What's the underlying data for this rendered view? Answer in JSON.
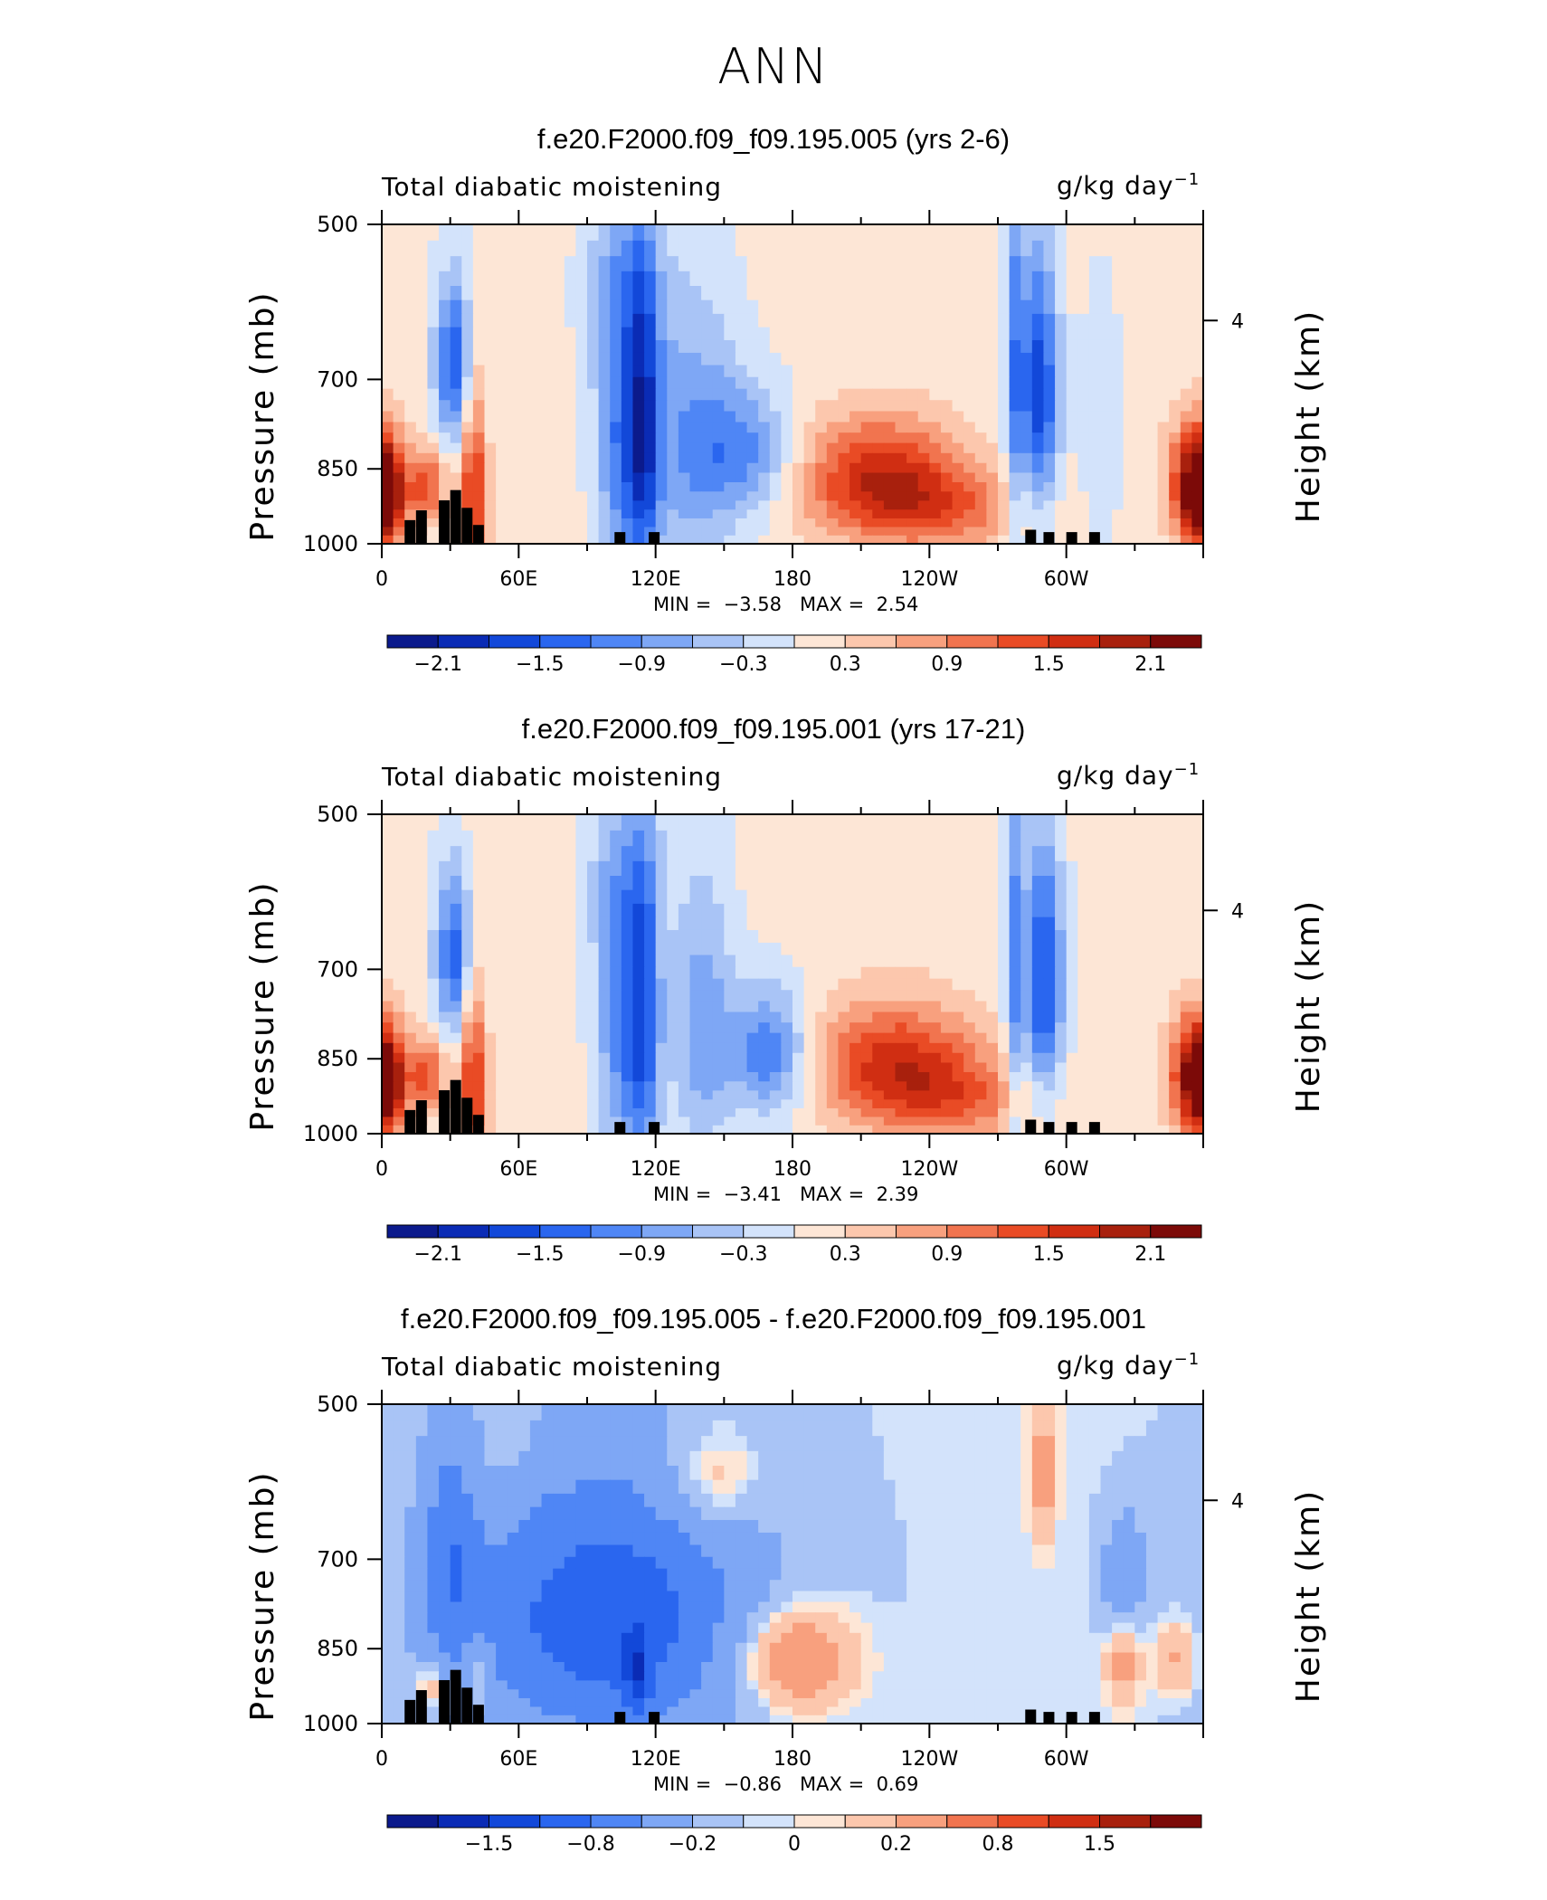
{
  "figure": {
    "main_title": "ANN",
    "varname": "Total diabatic moistening",
    "units": "g/kg day",
    "units_exp": "−1",
    "min_label": "MIN =",
    "max_label": "MAX ="
  },
  "colors": {
    "palette": [
      "#0b1a8c",
      "#0a2bb5",
      "#1248d9",
      "#2a66ef",
      "#4f86f5",
      "#7ea7f5",
      "#a9c4f6",
      "#d3e3fb",
      "#fde6d6",
      "#fcc7ad",
      "#f8a07e",
      "#f1744f",
      "#e94b25",
      "#d02e12",
      "#a8200d",
      "#7c0a08"
    ],
    "topography": "#000000"
  },
  "chart_data": [
    {
      "type": "heatmap",
      "title": "f.e20.F2000.f09_f09.195.005 (yrs 2-6)",
      "xlabel": "",
      "ylabel": "Pressure (mb)",
      "ylabel_right": "Height (km)",
      "x_ticks": [
        "0",
        "60E",
        "120E",
        "180",
        "120W",
        "60W"
      ],
      "y_ticks": [
        "500",
        "700",
        "850",
        "1000"
      ],
      "right_ticks": [
        "4"
      ],
      "xlim": [
        0,
        360
      ],
      "ylim": [
        1000,
        500
      ],
      "min_value": "−3.58",
      "max_value": "2.54",
      "colorbar_labels": [
        "−2.1",
        "−1.5",
        "−0.9",
        "−0.3",
        "0.3",
        "0.9",
        "1.5",
        "2.1"
      ],
      "colorbar_levels": [
        -2.4,
        -2.1,
        -1.8,
        -1.5,
        -1.2,
        -0.9,
        -0.6,
        -0.3,
        0,
        0.3,
        0.6,
        0.9,
        1.2,
        1.5,
        1.8,
        2.1,
        2.4
      ],
      "background": 0.1,
      "features": [
        {
          "lon": 32,
          "p": 680,
          "value": -1.6,
          "lon_width": 6,
          "p_width": 90
        },
        {
          "lon": 40,
          "p": 900,
          "value": 1.6,
          "lon_width": 4,
          "p_width": 160
        },
        {
          "lon": 2,
          "p": 900,
          "value": 1.8,
          "lon_width": 6,
          "p_width": 70
        },
        {
          "lon": 20,
          "p": 880,
          "value": 1.2,
          "lon_width": 6,
          "p_width": 50
        },
        {
          "lon": 105,
          "p": 800,
          "value": -1.2,
          "lon_width": 8,
          "p_width": 180
        },
        {
          "lon": 115,
          "p": 780,
          "value": -1.4,
          "lon_width": 5,
          "p_width": 200
        },
        {
          "lon": 135,
          "p": 800,
          "value": -0.9,
          "lon_width": 15,
          "p_width": 180
        },
        {
          "lon": 160,
          "p": 820,
          "value": -1.0,
          "lon_width": 15,
          "p_width": 80
        },
        {
          "lon": 105,
          "p": 570,
          "value": -0.6,
          "lon_width": 12,
          "p_width": 80
        },
        {
          "lon": 218,
          "p": 870,
          "value": 1.6,
          "lon_width": 25,
          "p_width": 80
        },
        {
          "lon": 250,
          "p": 930,
          "value": 0.8,
          "lon_width": 25,
          "p_width": 60
        },
        {
          "lon": 288,
          "p": 720,
          "value": -1.8,
          "lon_width": 6,
          "p_width": 150
        },
        {
          "lon": 277,
          "p": 700,
          "value": -1.0,
          "lon_width": 3,
          "p_width": 250
        },
        {
          "lon": 315,
          "p": 780,
          "value": -0.4,
          "lon_width": 6,
          "p_width": 150
        },
        {
          "lon": 356,
          "p": 880,
          "value": 1.9,
          "lon_width": 8,
          "p_width": 80
        }
      ],
      "topography": [
        [
          10,
          950
        ],
        [
          15,
          930
        ],
        [
          25,
          910
        ],
        [
          30,
          890
        ],
        [
          35,
          925
        ],
        [
          40,
          960
        ],
        [
          102,
          975
        ],
        [
          117,
          975
        ],
        [
          282,
          970
        ],
        [
          290,
          975
        ],
        [
          300,
          975
        ],
        [
          310,
          975
        ]
      ]
    },
    {
      "type": "heatmap",
      "title": "f.e20.F2000.f09_f09.195.001 (yrs 17-21)",
      "xlabel": "",
      "ylabel": "Pressure (mb)",
      "ylabel_right": "Height (km)",
      "x_ticks": [
        "0",
        "60E",
        "120E",
        "180",
        "120W",
        "60W"
      ],
      "y_ticks": [
        "500",
        "700",
        "850",
        "1000"
      ],
      "right_ticks": [
        "4"
      ],
      "xlim": [
        0,
        360
      ],
      "ylim": [
        1000,
        500
      ],
      "min_value": "−3.41",
      "max_value": "2.39",
      "colorbar_labels": [
        "−2.1",
        "−1.5",
        "−0.9",
        "−0.3",
        "0.3",
        "0.9",
        "1.5",
        "2.1"
      ],
      "colorbar_levels": [
        -2.4,
        -2.1,
        -1.8,
        -1.5,
        -1.2,
        -0.9,
        -0.6,
        -0.3,
        0,
        0.3,
        0.6,
        0.9,
        1.2,
        1.5,
        1.8,
        2.1,
        2.4
      ],
      "background": 0.1,
      "features": [
        {
          "lon": 32,
          "p": 680,
          "value": -1.5,
          "lon_width": 6,
          "p_width": 90
        },
        {
          "lon": 40,
          "p": 900,
          "value": 1.5,
          "lon_width": 4,
          "p_width": 160
        },
        {
          "lon": 2,
          "p": 900,
          "value": 1.7,
          "lon_width": 6,
          "p_width": 70
        },
        {
          "lon": 20,
          "p": 880,
          "value": 1.2,
          "lon_width": 6,
          "p_width": 50
        },
        {
          "lon": 105,
          "p": 800,
          "value": -1.1,
          "lon_width": 8,
          "p_width": 180
        },
        {
          "lon": 115,
          "p": 780,
          "value": -1.3,
          "lon_width": 5,
          "p_width": 200
        },
        {
          "lon": 140,
          "p": 790,
          "value": -0.9,
          "lon_width": 10,
          "p_width": 170
        },
        {
          "lon": 170,
          "p": 840,
          "value": -1.3,
          "lon_width": 12,
          "p_width": 80
        },
        {
          "lon": 105,
          "p": 570,
          "value": -0.5,
          "lon_width": 12,
          "p_width": 80
        },
        {
          "lon": 225,
          "p": 860,
          "value": 1.5,
          "lon_width": 25,
          "p_width": 80
        },
        {
          "lon": 255,
          "p": 930,
          "value": 0.8,
          "lon_width": 25,
          "p_width": 60
        },
        {
          "lon": 290,
          "p": 720,
          "value": -1.7,
          "lon_width": 6,
          "p_width": 150
        },
        {
          "lon": 277,
          "p": 700,
          "value": -1.0,
          "lon_width": 3,
          "p_width": 250
        },
        {
          "lon": 356,
          "p": 880,
          "value": 1.8,
          "lon_width": 8,
          "p_width": 80
        }
      ],
      "topography": [
        [
          10,
          950
        ],
        [
          15,
          930
        ],
        [
          25,
          910
        ],
        [
          30,
          890
        ],
        [
          35,
          925
        ],
        [
          40,
          960
        ],
        [
          102,
          975
        ],
        [
          117,
          975
        ],
        [
          282,
          970
        ],
        [
          290,
          975
        ],
        [
          300,
          975
        ],
        [
          310,
          975
        ]
      ]
    },
    {
      "type": "heatmap",
      "title": "f.e20.F2000.f09_f09.195.005 - f.e20.F2000.f09_f09.195.001",
      "xlabel": "",
      "ylabel": "Pressure (mb)",
      "ylabel_right": "Height (km)",
      "x_ticks": [
        "0",
        "60E",
        "120E",
        "180",
        "120W",
        "60W"
      ],
      "y_ticks": [
        "500",
        "700",
        "850",
        "1000"
      ],
      "right_ticks": [
        "4"
      ],
      "xlim": [
        0,
        360
      ],
      "ylim": [
        1000,
        500
      ],
      "min_value": "−0.86",
      "max_value": "0.69",
      "colorbar_labels": [
        "−1.5",
        "−0.8",
        "−0.2",
        "0",
        "0.2",
        "0.8",
        "1.5"
      ],
      "colorbar_levels": [
        -2.1,
        -1.8,
        -1.5,
        -1.2,
        -0.8,
        -0.5,
        -0.2,
        -0.05,
        0,
        0.05,
        0.2,
        0.5,
        0.8,
        1.2,
        1.5,
        1.8,
        2.1
      ],
      "background": -0.03,
      "features": [
        {
          "lon": 100,
          "p": 800,
          "value": -0.6,
          "lon_width": 40,
          "p_width": 140
        },
        {
          "lon": 95,
          "p": 780,
          "value": -0.4,
          "lon_width": 55,
          "p_width": 220
        },
        {
          "lon": 112,
          "p": 900,
          "value": -0.8,
          "lon_width": 4,
          "p_width": 60
        },
        {
          "lon": 30,
          "p": 700,
          "value": -0.5,
          "lon_width": 8,
          "p_width": 150
        },
        {
          "lon": 180,
          "p": 870,
          "value": 0.6,
          "lon_width": 18,
          "p_width": 70
        },
        {
          "lon": 145,
          "p": 590,
          "value": 0.35,
          "lon_width": 15,
          "p_width": 50
        },
        {
          "lon": 55,
          "p": 545,
          "value": 0.15,
          "lon_width": 10,
          "p_width": 40
        },
        {
          "lon": 23,
          "p": 920,
          "value": 0.4,
          "lon_width": 6,
          "p_width": 40
        },
        {
          "lon": 42,
          "p": 900,
          "value": 0.4,
          "lon_width": 4,
          "p_width": 50
        },
        {
          "lon": 325,
          "p": 720,
          "value": -0.45,
          "lon_width": 6,
          "p_width": 60
        },
        {
          "lon": 290,
          "p": 580,
          "value": 0.4,
          "lon_width": 4,
          "p_width": 60
        },
        {
          "lon": 325,
          "p": 880,
          "value": 0.35,
          "lon_width": 5,
          "p_width": 60
        },
        {
          "lon": 348,
          "p": 870,
          "value": 0.3,
          "lon_width": 7,
          "p_width": 50
        }
      ],
      "topography": [
        [
          10,
          950
        ],
        [
          15,
          930
        ],
        [
          25,
          910
        ],
        [
          30,
          890
        ],
        [
          35,
          925
        ],
        [
          40,
          960
        ],
        [
          102,
          975
        ],
        [
          117,
          975
        ],
        [
          282,
          970
        ],
        [
          290,
          975
        ],
        [
          300,
          975
        ],
        [
          310,
          975
        ]
      ]
    }
  ]
}
